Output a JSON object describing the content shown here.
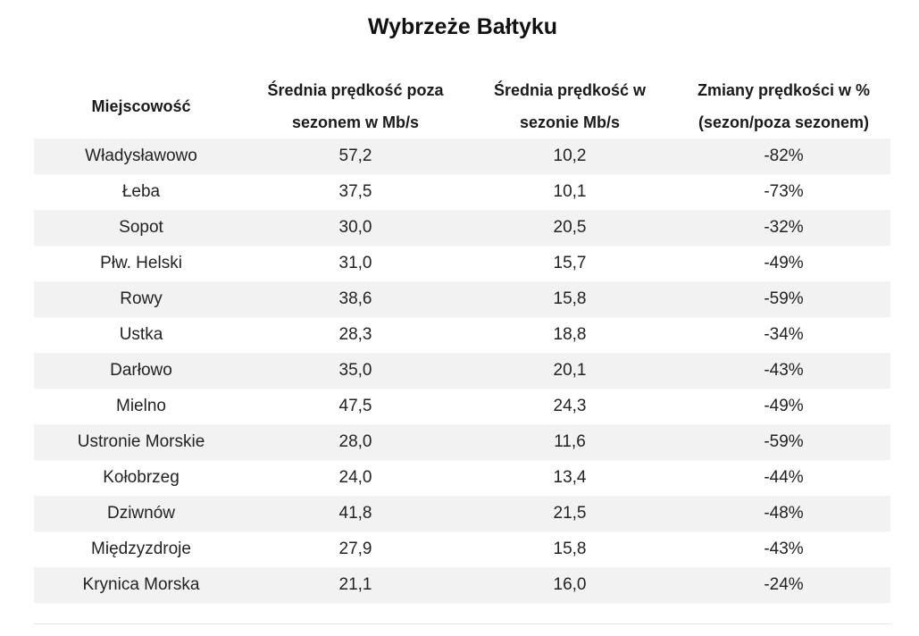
{
  "title": "Wybrzeże Bałtyku",
  "table": {
    "headers": {
      "city": "Miejscowość",
      "off_season_line1": "Średnia prędkość poza",
      "off_season_line2": "sezonem w Mb/s",
      "in_season_line1": "Średnia prędkość w",
      "in_season_line2": "sezonie Mb/s",
      "change_line1": "Zmiany prędkości w %",
      "change_line2": "(sezon/poza sezonem)"
    },
    "rows": [
      {
        "city": "Władysławowo",
        "off_season": "57,2",
        "in_season": "10,2",
        "change": "-82%"
      },
      {
        "city": "Łeba",
        "off_season": "37,5",
        "in_season": "10,1",
        "change": "-73%"
      },
      {
        "city": "Sopot",
        "off_season": "30,0",
        "in_season": "20,5",
        "change": "-32%"
      },
      {
        "city": "Płw. Helski",
        "off_season": "31,0",
        "in_season": "15,7",
        "change": "-49%"
      },
      {
        "city": "Rowy",
        "off_season": "38,6",
        "in_season": "15,8",
        "change": "-59%"
      },
      {
        "city": "Ustka",
        "off_season": "28,3",
        "in_season": "18,8",
        "change": "-34%"
      },
      {
        "city": "Darłowo",
        "off_season": "35,0",
        "in_season": "20,1",
        "change": "-43%"
      },
      {
        "city": "Mielno",
        "off_season": "47,5",
        "in_season": "24,3",
        "change": "-49%"
      },
      {
        "city": "Ustronie Morskie",
        "off_season": "28,0",
        "in_season": "11,6",
        "change": "-59%"
      },
      {
        "city": "Kołobrzeg",
        "off_season": "24,0",
        "in_season": "13,4",
        "change": "-44%"
      },
      {
        "city": "Dziwnów",
        "off_season": "41,8",
        "in_season": "21,5",
        "change": "-48%"
      },
      {
        "city": "Międzyzdroje",
        "off_season": "27,9",
        "in_season": "15,8",
        "change": "-43%"
      },
      {
        "city": "Krynica Morska",
        "off_season": "21,1",
        "in_season": "16,0",
        "change": "-24%"
      }
    ]
  }
}
